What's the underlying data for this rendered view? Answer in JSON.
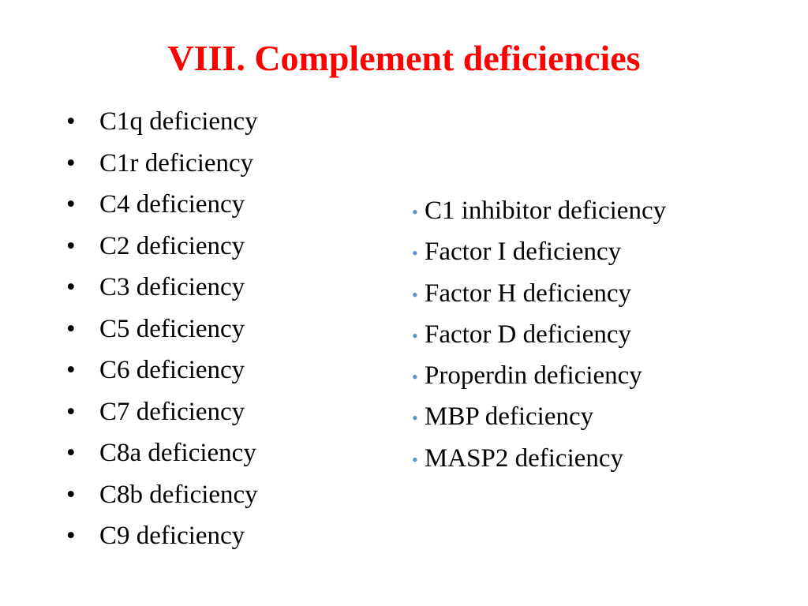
{
  "slide": {
    "title": "VIII. Complement deficiencies",
    "colors": {
      "title": "#ff0000",
      "text": "#000000",
      "right_bullet": "#5b8fc7",
      "background": "#ffffff"
    },
    "left_bullet_glyph": "•",
    "right_bullet_glyph": "•",
    "left_items": [
      "C1q deficiency",
      "C1r deficiency",
      "C4 deficiency",
      "C2 deficiency",
      "C3 deficiency",
      "C5 deficiency",
      "C6 deficiency",
      "C7 deficiency",
      "C8a deficiency",
      "C8b deficiency",
      "C9 deficiency"
    ],
    "right_items": [
      "C1 inhibitor deficiency",
      "Factor I deficiency",
      "Factor H deficiency",
      "Factor D deficiency",
      "Properdin deficiency",
      "MBP deficiency",
      "MASP2 deficiency"
    ]
  }
}
